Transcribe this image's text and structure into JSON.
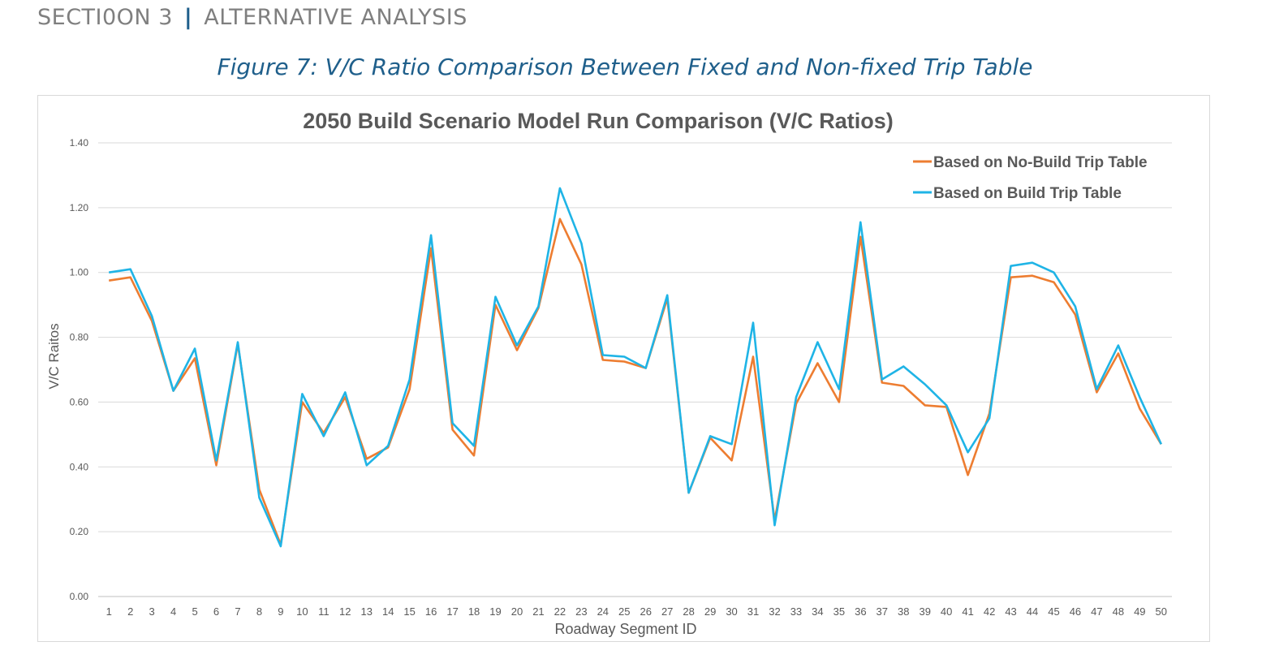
{
  "header": {
    "section_label": "SECTI0ON 3",
    "separator": "|",
    "section_title": "ALTERNATIVE ANALYSIS"
  },
  "figure": {
    "caption": "Figure 7: V/C Ratio Comparison Between Fixed and Non-fixed Trip Table"
  },
  "colors": {
    "no_build": "#ed7d31",
    "build": "#1fb4e6",
    "caption": "#1f5f8b",
    "grid": "#d9d9d9",
    "text": "#595959"
  },
  "chart_data": {
    "type": "line",
    "title": "2050 Build Scenario Model Run Comparison (V/C Ratios)",
    "xlabel": "Roadway Segment ID",
    "ylabel": "V/C Raitos",
    "ylim": [
      0,
      1.4
    ],
    "yticks": [
      "0.00",
      "0.20",
      "0.40",
      "0.60",
      "0.80",
      "1.00",
      "1.20",
      "1.40"
    ],
    "legend_position": "top-right",
    "grid": true,
    "x": [
      "1",
      "2",
      "3",
      "4",
      "5",
      "6",
      "7",
      "8",
      "9",
      "10",
      "11",
      "12",
      "13",
      "14",
      "15",
      "16",
      "17",
      "18",
      "19",
      "20",
      "21",
      "22",
      "23",
      "24",
      "25",
      "26",
      "27",
      "28",
      "29",
      "30",
      "31",
      "32",
      "33",
      "34",
      "35",
      "36",
      "37",
      "38",
      "39",
      "40",
      "41",
      "42",
      "43",
      "44",
      "45",
      "46",
      "47",
      "48",
      "49",
      "50"
    ],
    "series": [
      {
        "name": "Based on No-Build Trip Table",
        "color": "#ed7d31",
        "values": [
          0.975,
          0.985,
          0.85,
          0.635,
          0.735,
          0.405,
          0.78,
          0.33,
          0.16,
          0.6,
          0.505,
          0.615,
          0.425,
          0.46,
          0.64,
          1.075,
          0.515,
          0.435,
          0.9,
          0.76,
          0.89,
          1.165,
          1.025,
          0.73,
          0.725,
          0.705,
          0.92,
          0.32,
          0.49,
          0.42,
          0.74,
          0.235,
          0.595,
          0.72,
          0.6,
          1.11,
          0.66,
          0.65,
          0.59,
          0.585,
          0.375,
          0.565,
          0.985,
          0.99,
          0.97,
          0.87,
          0.63,
          0.75,
          0.58,
          0.47
        ]
      },
      {
        "name": "Based on Build Trip Table",
        "color": "#1fb4e6",
        "values": [
          1.0,
          1.01,
          0.865,
          0.635,
          0.765,
          0.42,
          0.785,
          0.305,
          0.155,
          0.625,
          0.495,
          0.63,
          0.405,
          0.465,
          0.67,
          1.115,
          0.535,
          0.465,
          0.925,
          0.775,
          0.895,
          1.26,
          1.09,
          0.745,
          0.74,
          0.705,
          0.93,
          0.32,
          0.495,
          0.47,
          0.845,
          0.22,
          0.615,
          0.785,
          0.64,
          1.155,
          0.67,
          0.71,
          0.655,
          0.59,
          0.445,
          0.55,
          1.02,
          1.03,
          1.0,
          0.895,
          0.64,
          0.775,
          0.615,
          0.47
        ]
      }
    ]
  }
}
